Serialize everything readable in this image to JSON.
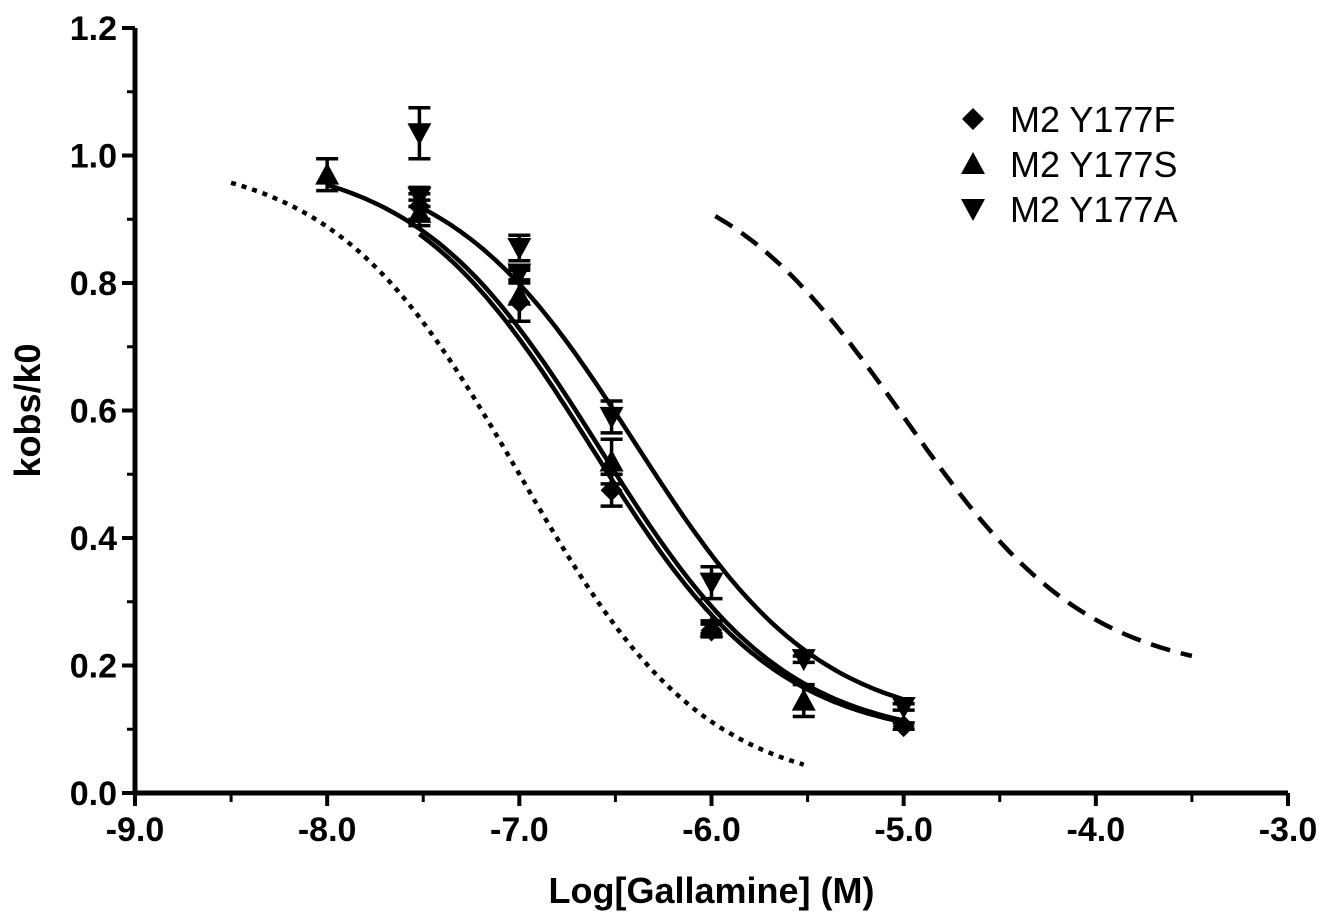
{
  "chart_data": {
    "type": "scatter",
    "xlabel": "Log[Gallamine] (M)",
    "ylabel": "kobs/k0",
    "xlim": [
      -9.0,
      -3.0
    ],
    "ylim": [
      0.0,
      1.2
    ],
    "x_ticks": [
      "-9.0",
      "-8.0",
      "-7.0",
      "-6.0",
      "-5.0",
      "-4.0",
      "-3.0"
    ],
    "y_ticks": [
      "0.0",
      "0.2",
      "0.4",
      "0.6",
      "0.8",
      "1.0",
      "1.2"
    ],
    "legend_position": "top-right",
    "series": [
      {
        "name": "M2 Y177F",
        "marker": "diamond",
        "points": [
          {
            "x": -7.52,
            "y": 0.92,
            "err": 0.02
          },
          {
            "x": -7.0,
            "y": 0.77,
            "err": 0.03
          },
          {
            "x": -6.52,
            "y": 0.475,
            "err": 0.025
          },
          {
            "x": -6.0,
            "y": 0.255,
            "err": 0.01
          },
          {
            "x": -5.0,
            "y": 0.105,
            "err": 0.005
          }
        ]
      },
      {
        "name": "M2 Y177S",
        "marker": "triangle-up",
        "points": [
          {
            "x": -8.0,
            "y": 0.97,
            "err": 0.025
          },
          {
            "x": -7.52,
            "y": 0.91,
            "err": 0.02
          },
          {
            "x": -7.0,
            "y": 0.78,
            "err": 0.04
          },
          {
            "x": -6.52,
            "y": 0.52,
            "err": 0.035
          },
          {
            "x": -6.0,
            "y": 0.26,
            "err": 0.01
          },
          {
            "x": -5.52,
            "y": 0.145,
            "err": 0.025
          }
        ]
      },
      {
        "name": "M2 Y177A",
        "marker": "triangle-down",
        "points": [
          {
            "x": -7.52,
            "y": 1.035,
            "err": 0.04
          },
          {
            "x": -7.52,
            "y": 0.935,
            "err": 0.015
          },
          {
            "x": -7.0,
            "y": 0.855,
            "err": 0.02
          },
          {
            "x": -7.0,
            "y": 0.815,
            "err": 0.01
          },
          {
            "x": -6.52,
            "y": 0.59,
            "err": 0.025
          },
          {
            "x": -6.0,
            "y": 0.33,
            "err": 0.025
          },
          {
            "x": -5.52,
            "y": 0.21,
            "err": 0.005
          },
          {
            "x": -5.0,
            "y": 0.135,
            "err": 0.005
          }
        ]
      }
    ],
    "curves": [
      {
        "series": "M2 Y177F",
        "style": "solid",
        "x_range": [
          -7.52,
          -5.0
        ],
        "bottom": 0.08,
        "top": 1.0,
        "logIC50": -6.62,
        "hill": 0.9
      },
      {
        "series": "M2 Y177S",
        "style": "solid",
        "x_range": [
          -8.0,
          -5.0
        ],
        "bottom": 0.08,
        "top": 1.0,
        "logIC50": -6.58,
        "hill": 0.9
      },
      {
        "series": "M2 Y177A",
        "style": "solid",
        "x_range": [
          -7.52,
          -5.0
        ],
        "bottom": 0.1,
        "top": 1.0,
        "logIC50": -6.4,
        "hill": 0.9
      },
      {
        "series": "reference-dotted",
        "style": "dotted",
        "x_range": [
          -8.5,
          -5.52
        ],
        "bottom": 0.0,
        "top": 1.0,
        "logIC50": -7.0,
        "hill": 0.9
      },
      {
        "series": "reference-dashed",
        "style": "dashed",
        "x_range": [
          -5.98,
          -3.5
        ],
        "bottom": 0.18,
        "top": 1.0,
        "logIC50": -5.0,
        "hill": 0.9
      }
    ]
  }
}
